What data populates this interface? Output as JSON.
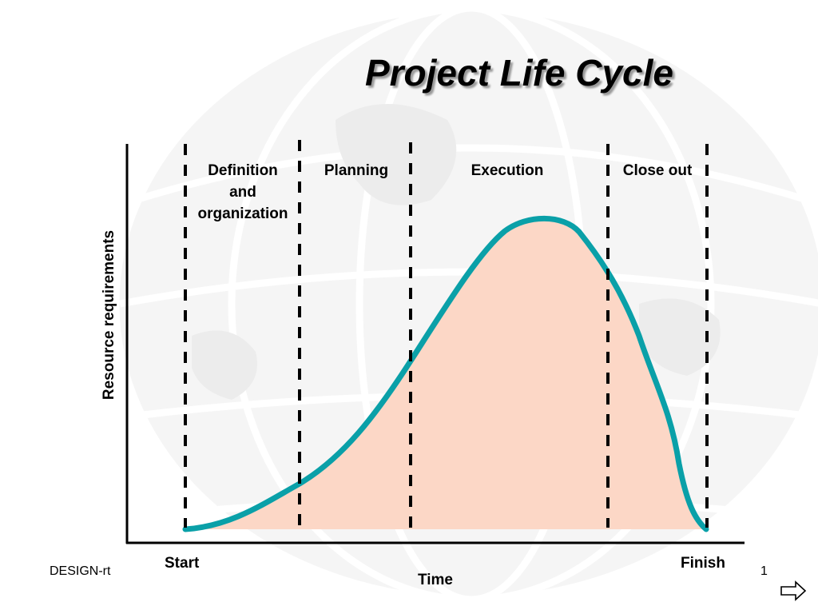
{
  "slide": {
    "title": "Project Life Cycle",
    "footer_left": "DESIGN-rt",
    "page_number": "1"
  },
  "chart_data": {
    "type": "area",
    "xlabel": "Time",
    "ylabel": "Resource requirements",
    "x_start_label": "Start",
    "x_end_label": "Finish",
    "phases": [
      {
        "name_lines": [
          "Definition",
          "and",
          "organization"
        ]
      },
      {
        "name_lines": [
          "Planning"
        ]
      },
      {
        "name_lines": [
          "Execution"
        ]
      },
      {
        "name_lines": [
          "Close out"
        ]
      }
    ],
    "curve_color": "#0aa0a8",
    "fill_color": "#fcd7c6"
  },
  "icons": {
    "next_arrow": "right-arrow-icon"
  }
}
